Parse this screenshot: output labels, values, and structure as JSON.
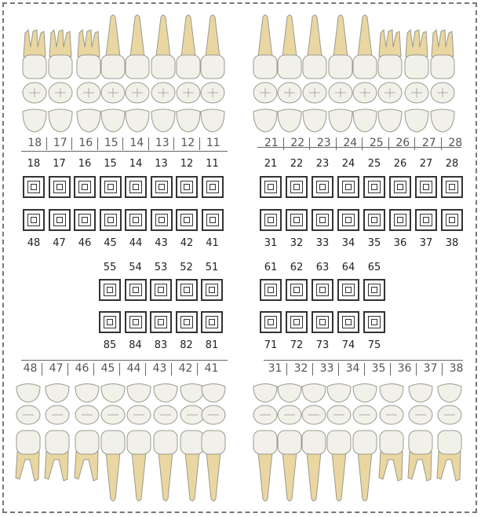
{
  "upper_right_labels": [
    "18",
    "17",
    "16",
    "15",
    "14",
    "13",
    "12",
    "11"
  ],
  "upper_left_labels": [
    "21",
    "22",
    "23",
    "24",
    "25",
    "26",
    "27",
    "28"
  ],
  "lower_right_labels": [
    "48",
    "47",
    "46",
    "45",
    "44",
    "43",
    "42",
    "41"
  ],
  "lower_left_labels": [
    "31",
    "32",
    "33",
    "34",
    "35",
    "36",
    "37",
    "38"
  ],
  "perm_upper_right": [
    "18",
    "17",
    "16",
    "15",
    "14",
    "13",
    "12",
    "11"
  ],
  "perm_upper_left": [
    "21",
    "22",
    "23",
    "24",
    "25",
    "26",
    "27",
    "28"
  ],
  "perm_lower_right": [
    "48",
    "47",
    "46",
    "45",
    "44",
    "43",
    "42",
    "41"
  ],
  "perm_lower_left": [
    "31",
    "32",
    "33",
    "34",
    "35",
    "36",
    "37",
    "38"
  ],
  "prim_upper_right": [
    "55",
    "54",
    "53",
    "52",
    "51"
  ],
  "prim_upper_left": [
    "61",
    "62",
    "63",
    "64",
    "65"
  ],
  "prim_lower_right": [
    "85",
    "84",
    "83",
    "82",
    "81"
  ],
  "prim_lower_left": [
    "71",
    "72",
    "73",
    "74",
    "75"
  ],
  "colors": {
    "enamel": "#f1f1ea",
    "root": "#e9d6a0",
    "outline": "#9a9a90",
    "box": "#333333"
  }
}
